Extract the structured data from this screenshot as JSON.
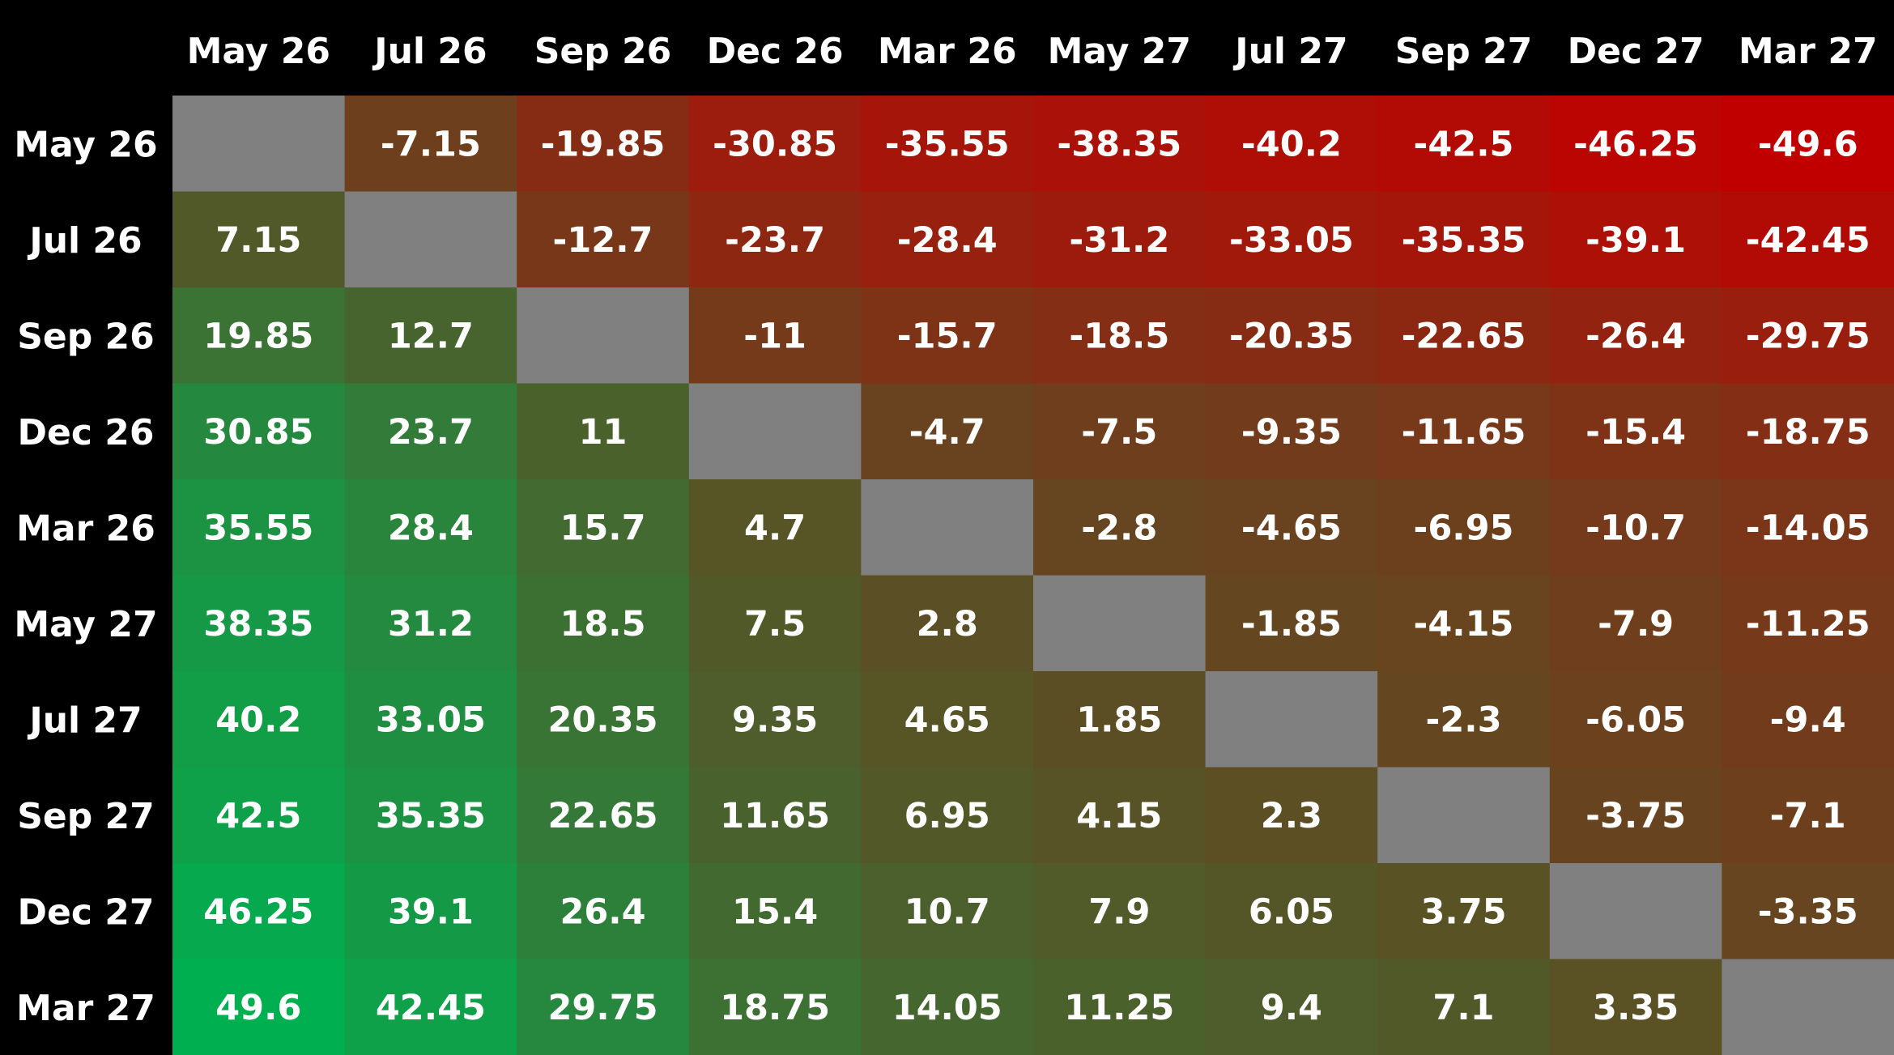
{
  "chart_data": {
    "type": "heatmap",
    "title": "",
    "xlabel": "",
    "ylabel": "",
    "columns": [
      "May 26",
      "Jul 26",
      "Sep 26",
      "Dec 26",
      "Mar 26",
      "May 27",
      "Jul 27",
      "Sep 27",
      "Dec 27",
      "Mar 27"
    ],
    "rows": [
      "May 26",
      "Jul 26",
      "Sep 26",
      "Dec 26",
      "Mar 26",
      "May 27",
      "Jul 27",
      "Sep 27",
      "Dec 27",
      "Mar 27"
    ],
    "values": [
      [
        null,
        -7.15,
        -19.85,
        -30.85,
        -35.55,
        -38.35,
        -40.2,
        -42.5,
        -46.25,
        -49.6
      ],
      [
        7.15,
        null,
        -12.7,
        -23.7,
        -28.4,
        -31.2,
        -33.05,
        -35.35,
        -39.1,
        -42.45
      ],
      [
        19.85,
        12.7,
        null,
        -11,
        -15.7,
        -18.5,
        -20.35,
        -22.65,
        -26.4,
        -29.75
      ],
      [
        30.85,
        23.7,
        11,
        null,
        -4.7,
        -7.5,
        -9.35,
        -11.65,
        -15.4,
        -18.75
      ],
      [
        35.55,
        28.4,
        15.7,
        4.7,
        null,
        -2.8,
        -4.65,
        -6.95,
        -10.7,
        -14.05
      ],
      [
        38.35,
        31.2,
        18.5,
        7.5,
        2.8,
        null,
        -1.85,
        -4.15,
        -7.9,
        -11.25
      ],
      [
        40.2,
        33.05,
        20.35,
        9.35,
        4.65,
        1.85,
        null,
        -2.3,
        -6.05,
        -9.4
      ],
      [
        42.5,
        35.35,
        22.65,
        11.65,
        6.95,
        4.15,
        2.3,
        null,
        -3.75,
        -7.1
      ],
      [
        46.25,
        39.1,
        26.4,
        15.4,
        10.7,
        7.9,
        6.05,
        3.75,
        null,
        -3.35
      ],
      [
        49.6,
        42.45,
        29.75,
        18.75,
        14.05,
        11.25,
        9.4,
        7.1,
        3.35,
        null
      ]
    ],
    "colors": {
      "background": "#000000",
      "empty_cell": "#808080",
      "max_positive": "#00b050",
      "max_negative": "#c00000",
      "neutral": "#604a22",
      "text": "#ffffff"
    },
    "grid": false,
    "legend": "none"
  }
}
